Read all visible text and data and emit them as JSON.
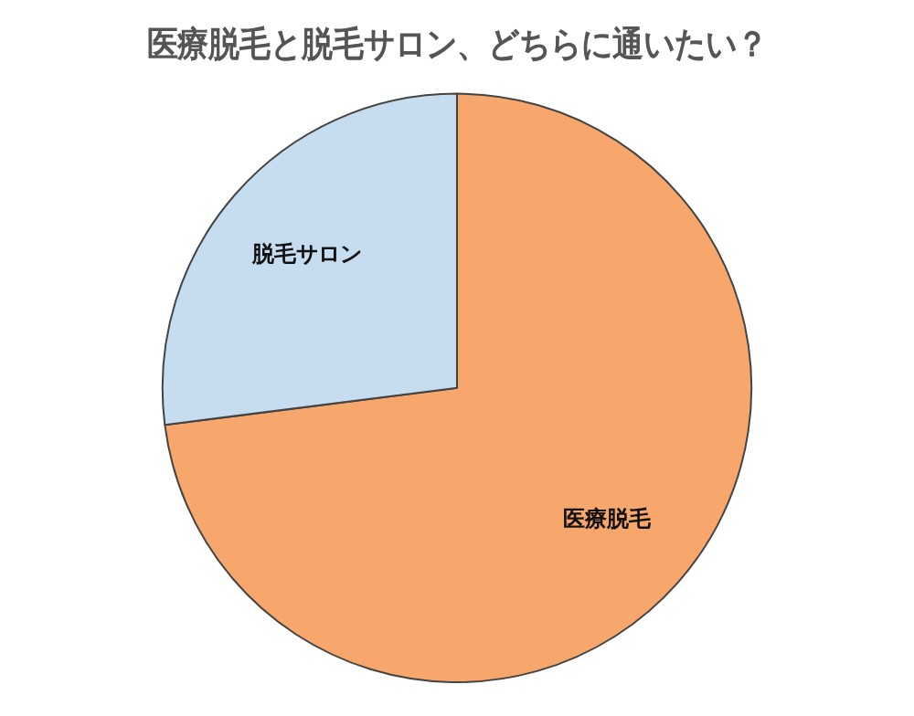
{
  "chart_data": {
    "type": "pie",
    "title": "医療脱毛と脱毛サロン、どちらに通いたい？",
    "categories": [
      "医療脱毛",
      "脱毛サロン"
    ],
    "values": [
      73,
      27
    ],
    "colors": [
      "#f7a76c",
      "#c6ddef"
    ],
    "legend": false
  }
}
